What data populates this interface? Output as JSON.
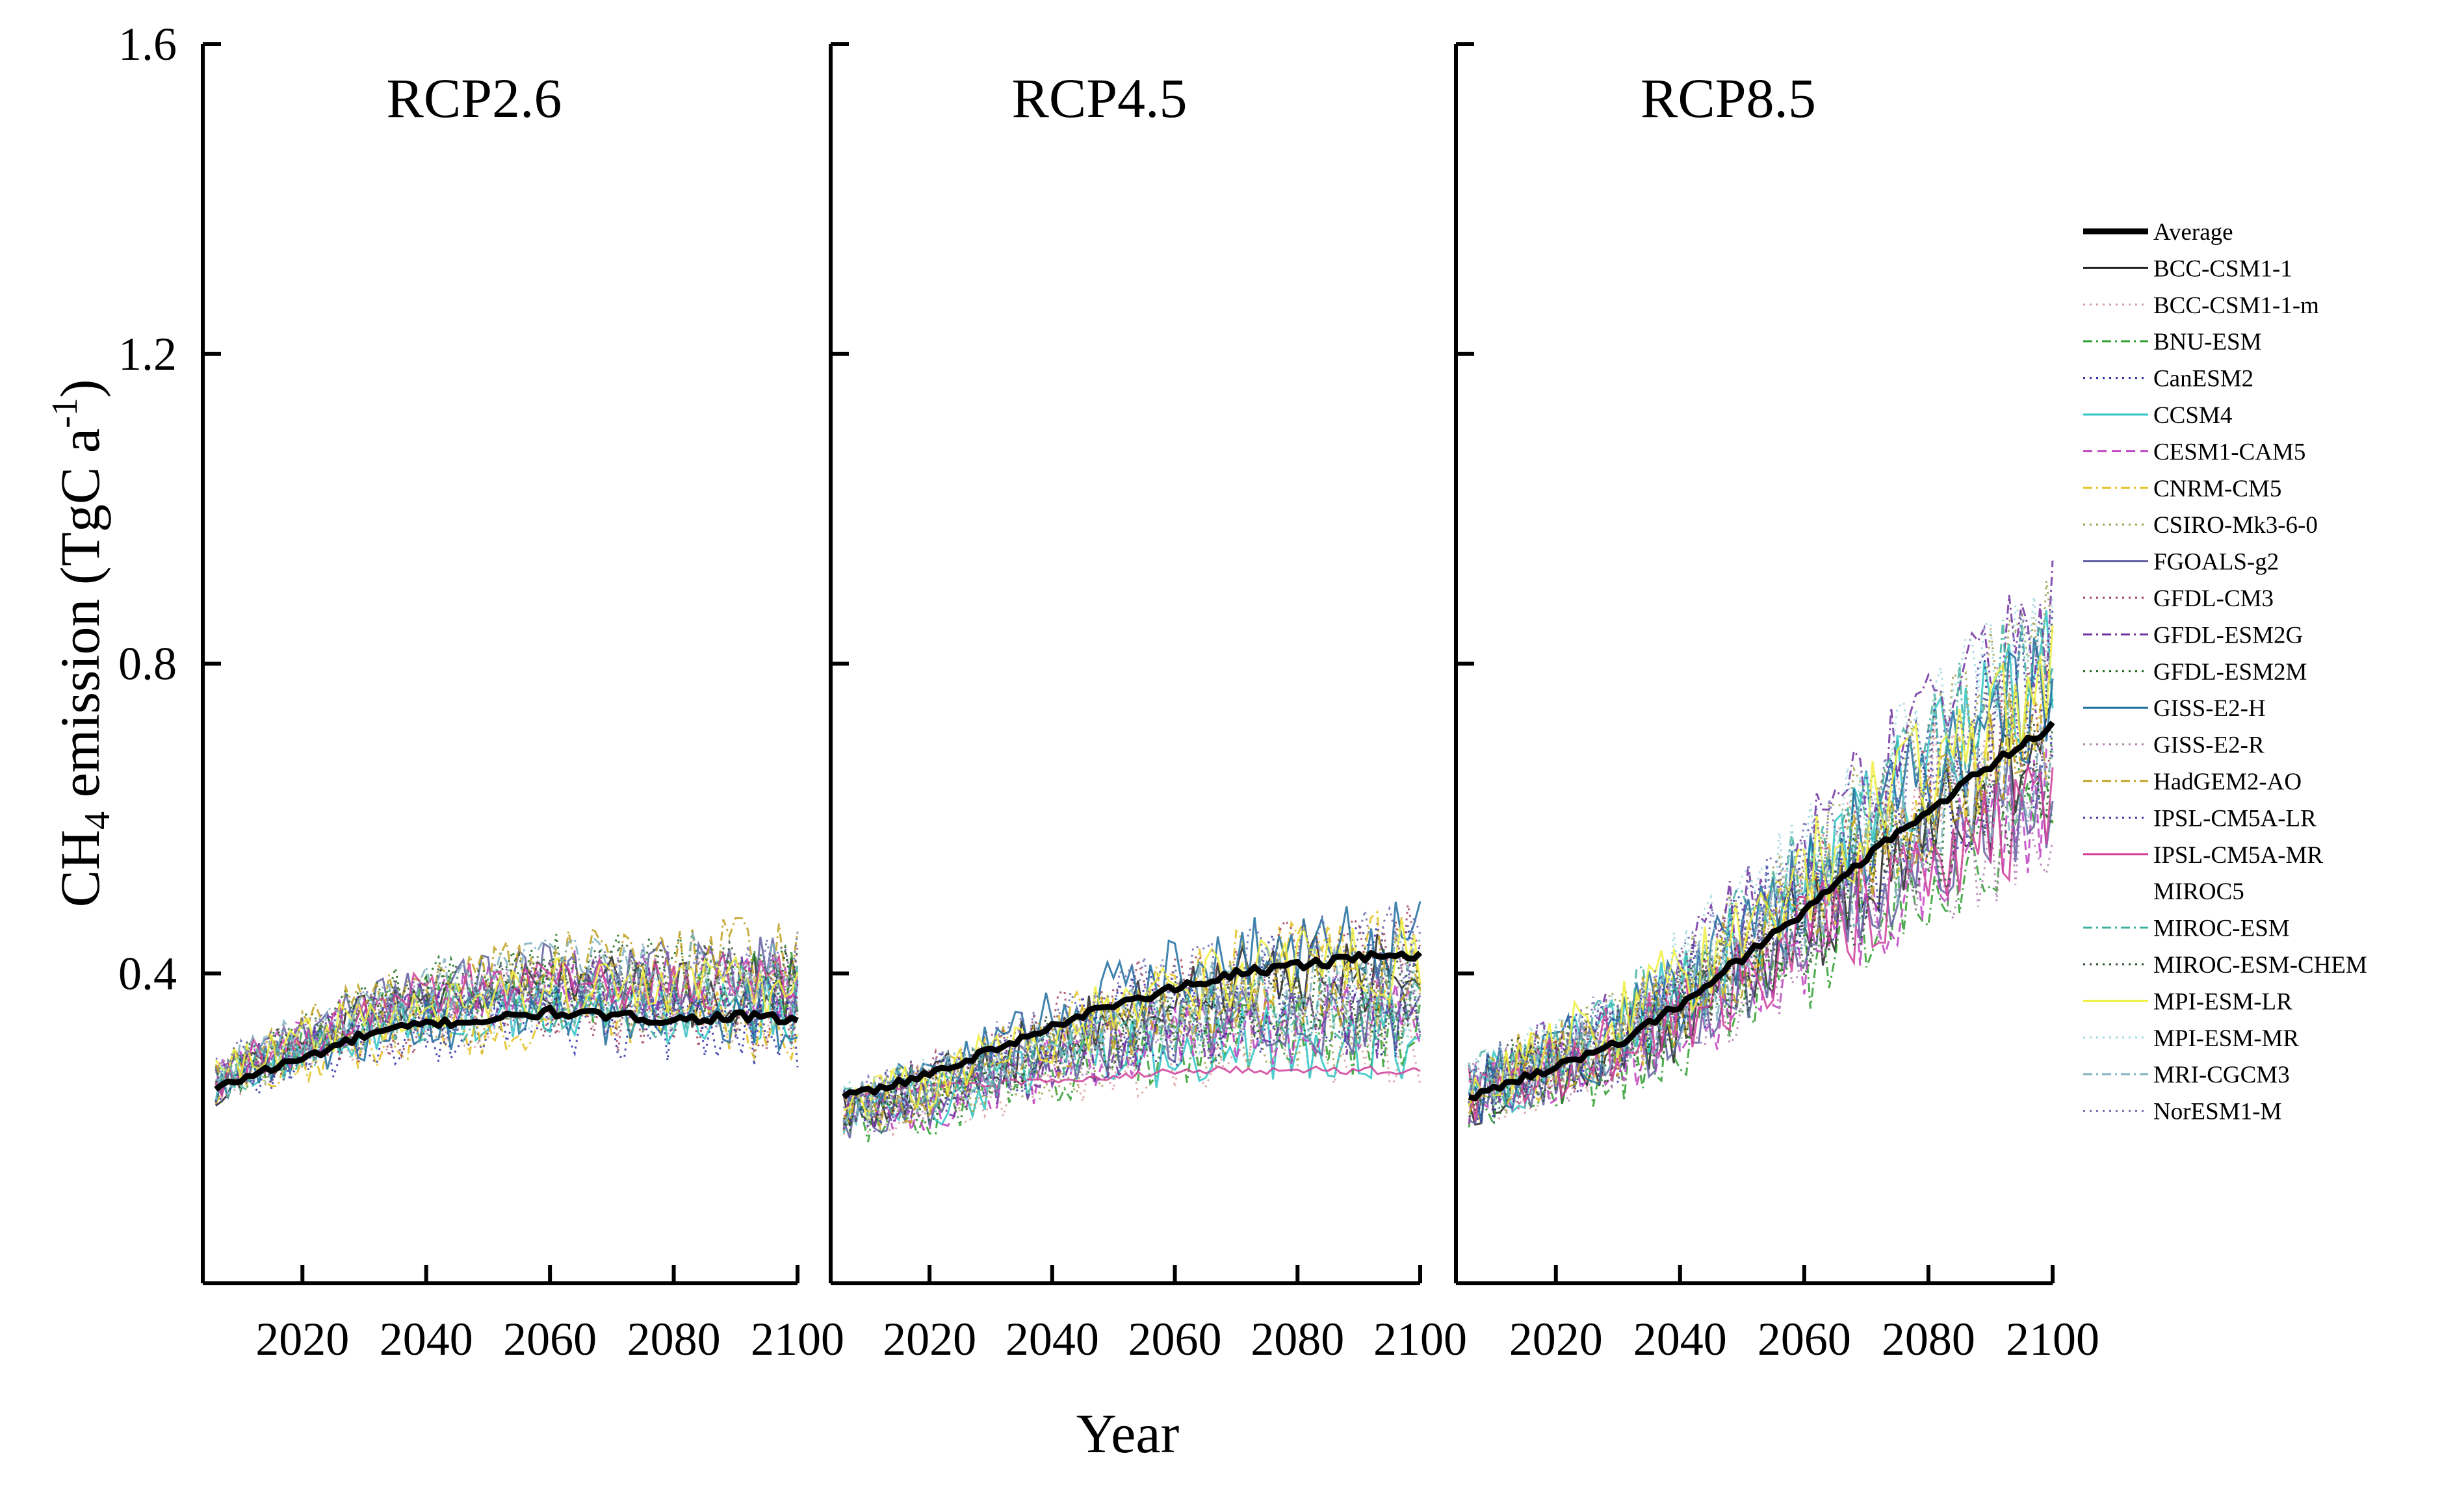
{
  "chart_data": {
    "type": "line",
    "xlabel": "Year",
    "ylabel_main": "CH",
    "ylabel_sub": "4",
    "ylabel_rest": " emission (TgC a",
    "ylabel_sup": "-1",
    "ylabel_close": ")",
    "ylim": [
      0.0,
      1.6
    ],
    "yticks": [
      0.4,
      0.8,
      1.2,
      1.6
    ],
    "ytick_labels": [
      "0.4",
      "0.8",
      "1.2",
      "1.6"
    ],
    "xlim": [
      2006,
      2100
    ],
    "xticks": [
      2020,
      2040,
      2060,
      2080,
      2100
    ],
    "xtick_labels": [
      "2020",
      "2040",
      "2060",
      "2080",
      "2100"
    ],
    "panels": [
      {
        "title": "RCP2.6",
        "average_keypoints": [
          [
            2006,
            0.25
          ],
          [
            2012,
            0.27
          ],
          [
            2020,
            0.29
          ],
          [
            2030,
            0.32
          ],
          [
            2040,
            0.335
          ],
          [
            2050,
            0.34
          ],
          [
            2060,
            0.35
          ],
          [
            2070,
            0.345
          ],
          [
            2080,
            0.34
          ],
          [
            2090,
            0.345
          ],
          [
            2100,
            0.34
          ]
        ],
        "spread": 0.06
      },
      {
        "title": "RCP4.5",
        "average_keypoints": [
          [
            2006,
            0.24
          ],
          [
            2012,
            0.25
          ],
          [
            2020,
            0.27
          ],
          [
            2030,
            0.3
          ],
          [
            2040,
            0.33
          ],
          [
            2050,
            0.36
          ],
          [
            2060,
            0.38
          ],
          [
            2070,
            0.4
          ],
          [
            2080,
            0.41
          ],
          [
            2090,
            0.42
          ],
          [
            2100,
            0.425
          ]
        ],
        "spread": 0.07
      },
      {
        "title": "RCP8.5",
        "average_keypoints": [
          [
            2006,
            0.24
          ],
          [
            2012,
            0.26
          ],
          [
            2020,
            0.28
          ],
          [
            2030,
            0.31
          ],
          [
            2040,
            0.36
          ],
          [
            2050,
            0.42
          ],
          [
            2060,
            0.48
          ],
          [
            2070,
            0.55
          ],
          [
            2080,
            0.61
          ],
          [
            2090,
            0.67
          ],
          [
            2100,
            0.72
          ]
        ],
        "spread": 0.1
      }
    ],
    "legend_position": "right",
    "legend": [
      {
        "name": "Average",
        "color": "#000000",
        "dash": "solid",
        "bold": true
      },
      {
        "name": "BCC-CSM1-1",
        "color": "#222222",
        "dash": "solid"
      },
      {
        "name": "BCC-CSM1-1-m",
        "color": "#d8a0a0",
        "dash": "dot"
      },
      {
        "name": "BNU-ESM",
        "color": "#2e9e2e",
        "dash": "dashdot"
      },
      {
        "name": "CanESM2",
        "color": "#2b2ba8",
        "dash": "dot"
      },
      {
        "name": "CCSM4",
        "color": "#2ec4c4",
        "dash": "solid"
      },
      {
        "name": "CESM1-CAM5",
        "color": "#c040c0",
        "dash": "dash"
      },
      {
        "name": "CNRM-CM5",
        "color": "#e0c020",
        "dash": "dashdot"
      },
      {
        "name": "CSIRO-Mk3-6-0",
        "color": "#a0a050",
        "dash": "dot"
      },
      {
        "name": "FGOALS-g2",
        "color": "#6060a0",
        "dash": "solid"
      },
      {
        "name": "GFDL-CM3",
        "color": "#a04060",
        "dash": "dot"
      },
      {
        "name": "GFDL-ESM2G",
        "color": "#7030a0",
        "dash": "dashdot"
      },
      {
        "name": "GFDL-ESM2M",
        "color": "#1a6a1a",
        "dash": "dot"
      },
      {
        "name": "GISS-E2-H",
        "color": "#1f6f9f",
        "dash": "solid"
      },
      {
        "name": "GISS-E2-R",
        "color": "#b080b0",
        "dash": "dot"
      },
      {
        "name": "HadGEM2-AO",
        "color": "#c0a020",
        "dash": "dashdot"
      },
      {
        "name": "IPSL-CM5A-LR",
        "color": "#3a3aa0",
        "dash": "dot"
      },
      {
        "name": "IPSL-CM5A-MR",
        "color": "#d0409a",
        "dash": "solid"
      },
      {
        "name": "MIROC5",
        "color": "#ffffff",
        "dash": "solid"
      },
      {
        "name": "MIROC-ESM",
        "color": "#40b0a0",
        "dash": "dashdot"
      },
      {
        "name": "MIROC-ESM-CHEM",
        "color": "#305030",
        "dash": "dot"
      },
      {
        "name": "MPI-ESM-LR",
        "color": "#f0f040",
        "dash": "solid"
      },
      {
        "name": "MPI-ESM-MR",
        "color": "#a0d8e0",
        "dash": "dot"
      },
      {
        "name": "MRI-CGCM3",
        "color": "#80b0c0",
        "dash": "dashdot"
      },
      {
        "name": "NorESM1-M",
        "color": "#6a6ab0",
        "dash": "dot"
      }
    ]
  }
}
